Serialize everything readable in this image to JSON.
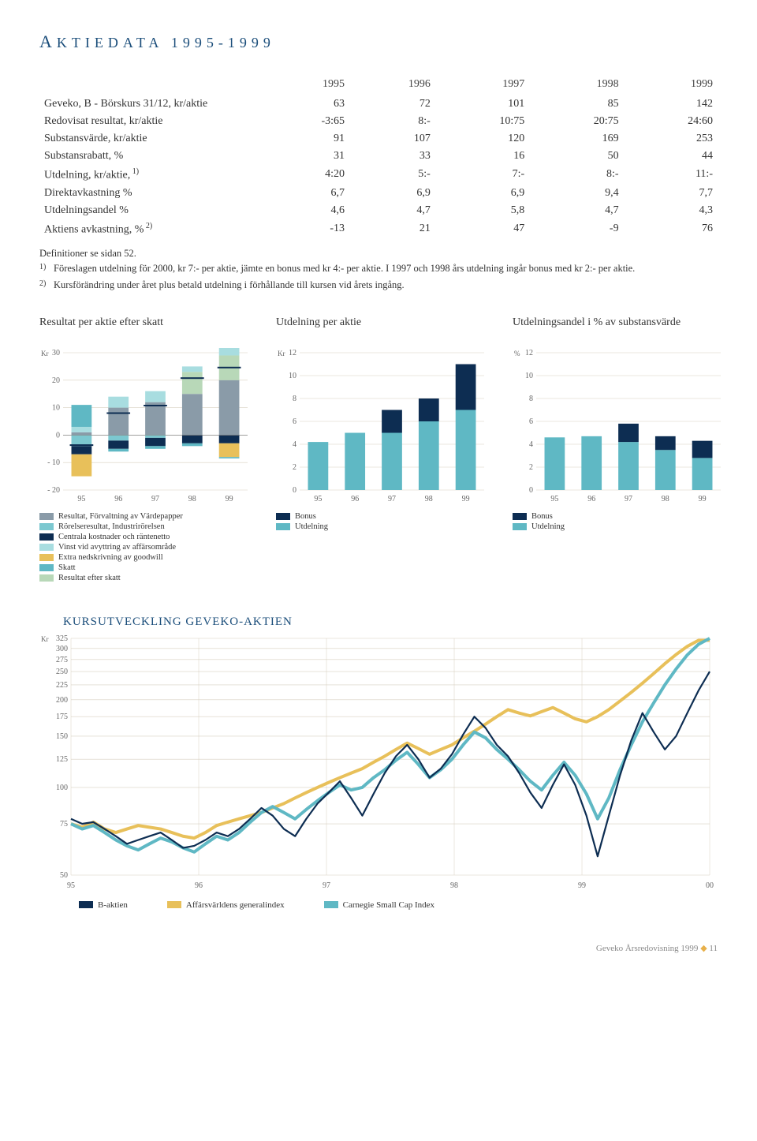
{
  "title_prefix": "A",
  "title_rest": "KTIEDATA 1995-1999",
  "colors": {
    "heading": "#1a4d7a",
    "teal": "#5fb8c4",
    "teal_mid": "#7cc8d0",
    "teal_light": "#a8dde0",
    "navy": "#0d2d52",
    "gray": "#8a9ba8",
    "lightgreen": "#b8d8b8",
    "yellow": "#e8c05a",
    "grid": "#d8d0c0",
    "axis": "#999"
  },
  "table": {
    "headers": [
      "",
      "1995",
      "1996",
      "1997",
      "1998",
      "1999"
    ],
    "rows": [
      {
        "label": "Geveko, B - Börskurs 31/12, kr/aktie",
        "vals": [
          "63",
          "72",
          "101",
          "85",
          "142"
        ]
      },
      {
        "label": "Redovisat resultat, kr/aktie",
        "vals": [
          "-3:65",
          "8:-",
          "10:75",
          "20:75",
          "24:60"
        ]
      },
      {
        "label": "Substansvärde, kr/aktie",
        "vals": [
          "91",
          "107",
          "120",
          "169",
          "253"
        ]
      },
      {
        "label": "Substansrabatt, %",
        "vals": [
          "31",
          "33",
          "16",
          "50",
          "44"
        ]
      },
      {
        "label": "Utdelning, kr/aktie,",
        "sup": "1)",
        "vals": [
          "4:20",
          "5:-",
          "7:-",
          "8:-",
          "11:-"
        ]
      },
      {
        "label": "Direktavkastning %",
        "vals": [
          "6,7",
          "6,9",
          "6,9",
          "9,4",
          "7,7"
        ]
      },
      {
        "label": "Utdelningsandel %",
        "vals": [
          "4,6",
          "4,7",
          "5,8",
          "4,7",
          "4,3"
        ]
      },
      {
        "label": "Aktiens avkastning, %",
        "sup": "2)",
        "vals": [
          "-13",
          "21",
          "47",
          "-9",
          "76"
        ]
      }
    ]
  },
  "footnotes": {
    "def": "Definitioner se sidan 52.",
    "items": [
      {
        "num": "1)",
        "text": "Föreslagen utdelning för 2000, kr 7:- per aktie, jämte en bonus med kr 4:- per aktie. I 1997 och 1998 års utdelning ingår bonus med kr 2:- per aktie."
      },
      {
        "num": "2)",
        "text": "Kursförändring under året plus betald utdelning i förhållande till kursen vid årets ingång."
      }
    ]
  },
  "chart1": {
    "title": "Resultat per aktie efter skatt",
    "yunit": "Kr",
    "ymin": -20,
    "ymax": 30,
    "ystep": 10,
    "categories": [
      "95",
      "96",
      "97",
      "98",
      "99"
    ],
    "stacks": [
      [
        {
          "c": "gray",
          "v": 1
        },
        {
          "c": "teal_mid",
          "v": -4
        },
        {
          "c": "navy",
          "v": -3
        },
        {
          "c": "teal_light",
          "v": 2
        },
        {
          "c": "yellow",
          "v": -8
        },
        {
          "c": "teal",
          "v": 8
        }
      ],
      [
        {
          "c": "gray",
          "v": 10
        },
        {
          "c": "teal_mid",
          "v": -2
        },
        {
          "c": "navy",
          "v": -3
        },
        {
          "c": "teal_light",
          "v": 4
        },
        {
          "c": "teal",
          "v": -1
        }
      ],
      [
        {
          "c": "gray",
          "v": 12
        },
        {
          "c": "teal_mid",
          "v": -1
        },
        {
          "c": "navy",
          "v": -3
        },
        {
          "c": "teal_light",
          "v": 4
        },
        {
          "c": "teal",
          "v": -1
        }
      ],
      [
        {
          "c": "gray",
          "v": 15
        },
        {
          "c": "lightgreen",
          "v": 8
        },
        {
          "c": "navy",
          "v": -3
        },
        {
          "c": "teal_light",
          "v": 2
        },
        {
          "c": "teal",
          "v": -1
        }
      ],
      [
        {
          "c": "gray",
          "v": 20
        },
        {
          "c": "lightgreen",
          "v": 9
        },
        {
          "c": "navy",
          "v": -3
        },
        {
          "c": "teal_light",
          "v": 4
        },
        {
          "c": "yellow",
          "v": -5
        },
        {
          "c": "teal",
          "v": -0.5
        }
      ]
    ],
    "markers": [
      -3.65,
      8,
      10.75,
      20.75,
      24.6
    ],
    "legend": [
      {
        "c": "gray",
        "label": "Resultat, Förvaltning av Värdepapper"
      },
      {
        "c": "teal_mid",
        "label": "Rörelseresultat, Industrirörelsen"
      },
      {
        "c": "navy",
        "label": "Centrala kostnader och räntenetto"
      },
      {
        "c": "teal_light",
        "label": "Vinst vid avyttring av affärsområde"
      },
      {
        "c": "yellow",
        "label": "Extra nedskrivning av goodwill"
      },
      {
        "c": "teal",
        "label": "Skatt"
      },
      {
        "c": "lightgreen",
        "label": "Resultat efter skatt"
      }
    ]
  },
  "chart2": {
    "title": "Utdelning per aktie",
    "yunit": "Kr",
    "ymin": 0,
    "ymax": 12,
    "ystep": 2,
    "categories": [
      "95",
      "96",
      "97",
      "98",
      "99"
    ],
    "stacks": [
      [
        {
          "c": "teal",
          "v": 4.2
        }
      ],
      [
        {
          "c": "teal",
          "v": 5
        }
      ],
      [
        {
          "c": "teal",
          "v": 5
        },
        {
          "c": "navy",
          "v": 2
        }
      ],
      [
        {
          "c": "teal",
          "v": 6
        },
        {
          "c": "navy",
          "v": 2
        }
      ],
      [
        {
          "c": "teal",
          "v": 7
        },
        {
          "c": "navy",
          "v": 4
        }
      ]
    ],
    "legend": [
      {
        "c": "navy",
        "label": "Bonus"
      },
      {
        "c": "teal",
        "label": "Utdelning"
      }
    ]
  },
  "chart3": {
    "title": "Utdelningsandel i % av substansvärde",
    "yunit": "%",
    "ymin": 0,
    "ymax": 12,
    "ystep": 2,
    "categories": [
      "95",
      "96",
      "97",
      "98",
      "99"
    ],
    "stacks": [
      [
        {
          "c": "teal",
          "v": 4.6
        }
      ],
      [
        {
          "c": "teal",
          "v": 4.7
        }
      ],
      [
        {
          "c": "teal",
          "v": 4.2
        },
        {
          "c": "navy",
          "v": 1.6
        }
      ],
      [
        {
          "c": "teal",
          "v": 3.5
        },
        {
          "c": "navy",
          "v": 1.2
        }
      ],
      [
        {
          "c": "teal",
          "v": 2.8
        },
        {
          "c": "navy",
          "v": 1.5
        }
      ]
    ],
    "legend": [
      {
        "c": "navy",
        "label": "Bonus"
      },
      {
        "c": "teal",
        "label": "Utdelning"
      }
    ]
  },
  "stock_chart": {
    "title": "KURSUTVECKLING GEVEKO-AKTIEN",
    "yunit": "Kr",
    "yticks": [
      50,
      75,
      100,
      125,
      150,
      175,
      200,
      225,
      250,
      275,
      300,
      325
    ],
    "xticks": [
      "95",
      "96",
      "97",
      "98",
      "99",
      "00"
    ],
    "series": {
      "yellow": [
        75,
        73,
        76,
        72,
        70,
        72,
        74,
        73,
        72,
        70,
        68,
        67,
        70,
        74,
        76,
        78,
        80,
        82,
        85,
        88,
        92,
        96,
        100,
        104,
        108,
        112,
        116,
        122,
        128,
        135,
        142,
        136,
        130,
        135,
        140,
        148,
        156,
        165,
        175,
        185,
        180,
        176,
        182,
        188,
        180,
        172,
        168,
        175,
        185,
        198,
        212,
        228,
        246,
        266,
        286,
        305,
        320,
        320
      ],
      "teal": [
        75,
        72,
        74,
        70,
        66,
        63,
        61,
        64,
        67,
        65,
        62,
        60,
        64,
        68,
        66,
        70,
        76,
        82,
        86,
        82,
        78,
        84,
        90,
        96,
        102,
        98,
        100,
        108,
        115,
        124,
        132,
        120,
        108,
        115,
        125,
        140,
        155,
        148,
        135,
        125,
        115,
        105,
        98,
        110,
        122,
        110,
        95,
        78,
        92,
        115,
        140,
        168,
        195,
        225,
        255,
        285,
        310,
        325
      ],
      "navy": [
        78,
        75,
        76,
        72,
        68,
        64,
        66,
        68,
        70,
        66,
        62,
        63,
        66,
        70,
        68,
        72,
        78,
        85,
        80,
        72,
        68,
        78,
        88,
        96,
        105,
        92,
        80,
        95,
        112,
        128,
        140,
        125,
        108,
        116,
        130,
        152,
        175,
        160,
        140,
        128,
        112,
        96,
        85,
        102,
        120,
        102,
        80,
        58,
        80,
        110,
        145,
        180,
        155,
        135,
        150,
        180,
        215,
        250
      ]
    },
    "legend": [
      {
        "c": "navy",
        "label": "B-aktien"
      },
      {
        "c": "yellow",
        "label": "Affärsvärldens generalindex"
      },
      {
        "c": "teal",
        "label": "Carnegie Small Cap Index"
      }
    ]
  },
  "footer": {
    "text": "Geveko Årsredovisning 1999",
    "page": "11"
  }
}
